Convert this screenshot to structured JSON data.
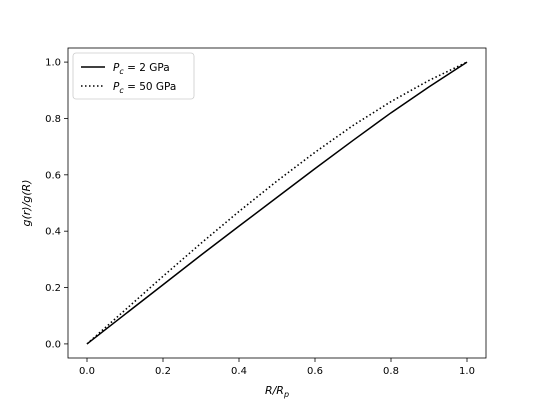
{
  "chart_data": {
    "type": "line",
    "title": "",
    "xlabel": "R/R",
    "xlabel_sub": "p",
    "ylabel": "g(r)/g(R)",
    "xlim": [
      -0.05,
      1.05
    ],
    "ylim": [
      -0.05,
      1.05
    ],
    "xticks": [
      0.0,
      0.2,
      0.4,
      0.6,
      0.8,
      1.0
    ],
    "yticks": [
      0.0,
      0.2,
      0.4,
      0.6,
      0.8,
      1.0
    ],
    "xtick_labels": [
      "0.0",
      "0.2",
      "0.4",
      "0.6",
      "0.8",
      "1.0"
    ],
    "ytick_labels": [
      "0.0",
      "0.2",
      "0.4",
      "0.6",
      "0.8",
      "1.0"
    ],
    "grid": false,
    "legend_position": "top-left",
    "series": [
      {
        "name": "= 2 GPa",
        "legend_symbol": "P",
        "legend_sub": "c",
        "style": "solid",
        "color": "#000000",
        "x": [
          0.0,
          0.1,
          0.2,
          0.3,
          0.4,
          0.5,
          0.6,
          0.7,
          0.8,
          0.9,
          1.0
        ],
        "y": [
          0.0,
          0.105,
          0.21,
          0.315,
          0.418,
          0.52,
          0.622,
          0.722,
          0.82,
          0.912,
          1.0
        ]
      },
      {
        "name": "= 50 GPa",
        "legend_symbol": "P",
        "legend_sub": "c",
        "style": "dotted",
        "color": "#000000",
        "x": [
          0.0,
          0.1,
          0.2,
          0.3,
          0.4,
          0.5,
          0.6,
          0.7,
          0.8,
          0.9,
          1.0
        ],
        "y": [
          0.0,
          0.12,
          0.24,
          0.357,
          0.47,
          0.578,
          0.68,
          0.775,
          0.86,
          0.935,
          1.0
        ]
      }
    ]
  }
}
